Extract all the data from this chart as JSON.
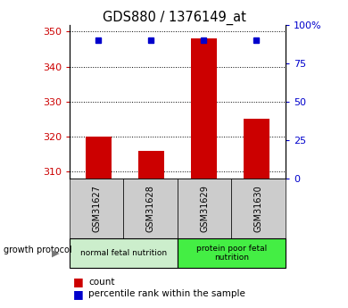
{
  "title": "GDS880 / 1376149_at",
  "samples": [
    "GSM31627",
    "GSM31628",
    "GSM31629",
    "GSM31630"
  ],
  "counts": [
    320,
    316,
    348,
    325
  ],
  "percentiles": [
    90,
    90,
    90,
    90
  ],
  "ylim_left": [
    308,
    352
  ],
  "ylim_right": [
    0,
    100
  ],
  "yticks_left": [
    310,
    320,
    330,
    340,
    350
  ],
  "yticks_right": [
    0,
    25,
    50,
    75,
    100
  ],
  "ytick_labels_right": [
    "0",
    "25",
    "50",
    "75",
    "100%"
  ],
  "bar_color": "#cc0000",
  "dot_color": "#0000cc",
  "bar_width": 0.5,
  "groups": [
    {
      "label": "normal fetal nutrition",
      "samples": [
        0,
        1
      ],
      "color": "#cceecc"
    },
    {
      "label": "protein poor fetal\nnutrition",
      "samples": [
        2,
        3
      ],
      "color": "#44ee44"
    }
  ],
  "sample_box_color": "#cccccc",
  "legend_items": [
    {
      "label": "count",
      "color": "#cc0000"
    },
    {
      "label": "percentile rank within the sample",
      "color": "#0000cc"
    }
  ],
  "plot_bg": "#ffffff"
}
